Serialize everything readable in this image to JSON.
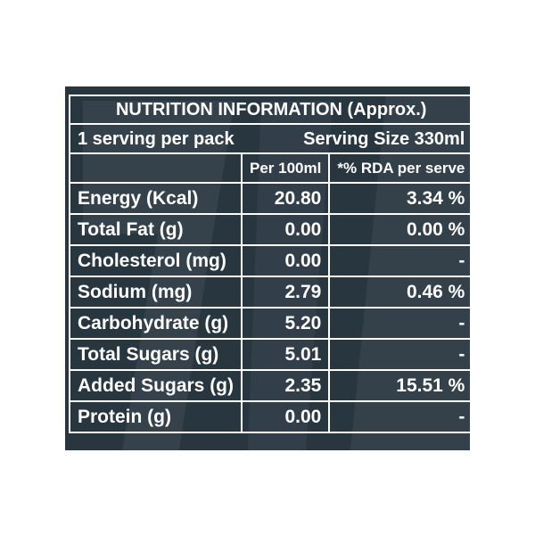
{
  "label": {
    "title": "NUTRITION INFORMATION (Approx.)",
    "servings_per_pack": "1 serving per pack",
    "serving_size": "Serving Size 330ml",
    "col_per100": "Per 100ml",
    "col_rda": "*% RDA per serve",
    "rows": [
      {
        "nutrient": "Energy (Kcal)",
        "per100": "20.80",
        "rda": "3.34 %"
      },
      {
        "nutrient": "Total Fat (g)",
        "per100": "0.00",
        "rda": "0.00 %"
      },
      {
        "nutrient": "Cholesterol (mg)",
        "per100": "0.00",
        "rda": "-"
      },
      {
        "nutrient": "Sodium (mg)",
        "per100": "2.79",
        "rda": "0.46 %"
      },
      {
        "nutrient": "Carbohydrate (g)",
        "per100": "5.20",
        "rda": "-"
      },
      {
        "nutrient": "Total Sugars (g)",
        "per100": "5.01",
        "rda": "-"
      },
      {
        "nutrient": "Added Sugars (g)",
        "per100": "2.35",
        "rda": "15.51 %"
      },
      {
        "nutrient": "Protein (g)",
        "per100": "0.00",
        "rda": "-"
      }
    ]
  },
  "colors": {
    "panel_background": "#283640",
    "text": "#ffffff",
    "decorative_shape": "#3f4c56"
  }
}
